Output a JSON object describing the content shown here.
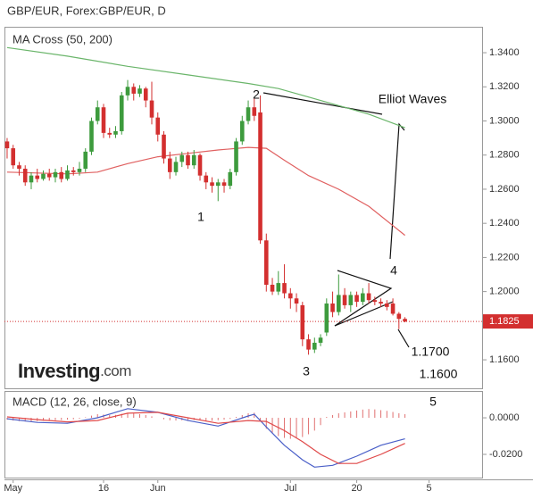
{
  "chart_data": {
    "type": "candlestick",
    "title": "GBP/EUR, Forex:GBP/EUR, D",
    "indicator_label": "MA Cross (50, 200)",
    "macd_label": "MACD (12, 26, close, 9)",
    "logo": "Investing",
    "logo_suffix": ".com",
    "x": [
      0,
      1,
      2,
      3,
      4,
      5,
      6,
      7,
      8,
      9,
      10,
      11,
      12,
      13,
      14,
      15,
      16,
      17,
      18,
      19,
      20,
      21,
      22,
      23,
      24,
      25,
      26,
      27,
      28,
      29,
      30,
      31,
      32,
      33,
      34,
      35,
      36,
      37,
      38,
      39,
      40,
      41,
      42,
      43,
      44,
      45,
      46,
      47,
      48,
      49,
      50,
      51,
      52,
      53,
      54,
      55,
      56,
      57,
      58,
      59,
      60,
      61,
      62,
      63,
      64,
      65,
      66
    ],
    "open": [
      1.288,
      1.284,
      1.274,
      1.272,
      1.264,
      1.268,
      1.266,
      1.269,
      1.267,
      1.27,
      1.266,
      1.271,
      1.27,
      1.272,
      1.282,
      1.3,
      1.308,
      1.293,
      1.292,
      1.294,
      1.315,
      1.32,
      1.316,
      1.319,
      1.312,
      1.302,
      1.292,
      1.278,
      1.27,
      1.276,
      1.28,
      1.274,
      1.28,
      1.268,
      1.264,
      1.262,
      1.264,
      1.262,
      1.27,
      1.288,
      1.3,
      1.308,
      1.305,
      1.23,
      1.204,
      1.2,
      1.205,
      1.199,
      1.196,
      1.192,
      1.172,
      1.166,
      1.17,
      1.176,
      1.193,
      1.188,
      1.198,
      1.192,
      1.198,
      1.194,
      1.199,
      1.195,
      1.194,
      1.193,
      1.193,
      1.187,
      1.184
    ],
    "high": [
      1.29,
      1.286,
      1.276,
      1.274,
      1.27,
      1.272,
      1.271,
      1.272,
      1.272,
      1.273,
      1.274,
      1.273,
      1.276,
      1.284,
      1.302,
      1.312,
      1.31,
      1.296,
      1.297,
      1.317,
      1.324,
      1.322,
      1.321,
      1.32,
      1.323,
      1.305,
      1.294,
      1.282,
      1.279,
      1.282,
      1.282,
      1.283,
      1.281,
      1.27,
      1.267,
      1.266,
      1.266,
      1.272,
      1.29,
      1.303,
      1.312,
      1.313,
      1.315,
      1.234,
      1.208,
      1.212,
      1.216,
      1.202,
      1.199,
      1.194,
      1.175,
      1.173,
      1.175,
      1.196,
      1.2,
      1.21,
      1.202,
      1.2,
      1.2,
      1.202,
      1.205,
      1.197,
      1.196,
      1.195,
      1.196,
      1.188,
      1.185
    ],
    "low": [
      1.278,
      1.272,
      1.268,
      1.262,
      1.26,
      1.264,
      1.265,
      1.265,
      1.264,
      1.264,
      1.265,
      1.268,
      1.268,
      1.27,
      1.28,
      1.298,
      1.29,
      1.29,
      1.29,
      1.292,
      1.312,
      1.312,
      1.314,
      1.308,
      1.298,
      1.288,
      1.275,
      1.266,
      1.268,
      1.273,
      1.272,
      1.272,
      1.265,
      1.26,
      1.258,
      1.253,
      1.258,
      1.26,
      1.268,
      1.286,
      1.298,
      1.3,
      1.228,
      1.2,
      1.198,
      1.198,
      1.196,
      1.19,
      1.188,
      1.168,
      1.163,
      1.164,
      1.168,
      1.174,
      1.185,
      1.186,
      1.19,
      1.188,
      1.191,
      1.192,
      1.193,
      1.192,
      1.191,
      1.189,
      1.186,
      1.178,
      1.182
    ],
    "close": [
      1.284,
      1.274,
      1.272,
      1.264,
      1.268,
      1.266,
      1.269,
      1.267,
      1.27,
      1.266,
      1.271,
      1.27,
      1.272,
      1.282,
      1.3,
      1.308,
      1.293,
      1.292,
      1.294,
      1.315,
      1.32,
      1.316,
      1.319,
      1.312,
      1.302,
      1.292,
      1.278,
      1.27,
      1.276,
      1.28,
      1.274,
      1.28,
      1.268,
      1.264,
      1.262,
      1.264,
      1.262,
      1.27,
      1.288,
      1.3,
      1.308,
      1.303,
      1.23,
      1.204,
      1.2,
      1.205,
      1.199,
      1.196,
      1.193,
      1.172,
      1.166,
      1.17,
      1.173,
      1.193,
      1.188,
      1.198,
      1.192,
      1.198,
      1.194,
      1.199,
      1.195,
      1.194,
      1.193,
      1.191,
      1.187,
      1.184,
      1.1825
    ],
    "up_color": "#3d9b3d",
    "down_color": "#d32f2f",
    "moving_averages": [
      {
        "color": "#6ab56a",
        "x": [
          0,
          10,
          20,
          30,
          40,
          45,
          50,
          55,
          60,
          66
        ],
        "values": [
          1.343,
          1.338,
          1.332,
          1.327,
          1.322,
          1.319,
          1.314,
          1.309,
          1.304,
          1.296
        ]
      },
      {
        "color": "#e06060",
        "x": [
          0,
          10,
          15,
          20,
          25,
          30,
          35,
          40,
          43,
          46,
          50,
          55,
          60,
          66
        ],
        "values": [
          1.27,
          1.269,
          1.27,
          1.275,
          1.279,
          1.281,
          1.283,
          1.2845,
          1.284,
          1.277,
          1.268,
          1.26,
          1.25,
          1.233
        ]
      }
    ],
    "last_price": {
      "value": 1.1825,
      "label": "1.1825",
      "color": "#d32f2f"
    },
    "xlim": [
      -0.44,
      78.8
    ],
    "xticks": [
      {
        "value": 1,
        "label": "May"
      },
      16,
      {
        "value": 25,
        "label": "Jun"
      },
      {
        "value": 47,
        "label": "Jul"
      },
      {
        "value": 58,
        "label": "20"
      },
      {
        "value": 70,
        "label": "5"
      }
    ],
    "ylim": [
      1.1433,
      1.3552
    ],
    "yticks": [
      {
        "value": 1.16,
        "label": "1.1600"
      },
      {
        "value": 1.18,
        "label": "1.1800"
      },
      {
        "value": 1.2,
        "label": "1.2000"
      },
      {
        "value": 1.22,
        "label": "1.2200"
      },
      {
        "value": 1.24,
        "label": "1.2400"
      },
      {
        "value": 1.26,
        "label": "1.2600"
      },
      {
        "value": 1.28,
        "label": "1.2800"
      },
      {
        "value": 1.3,
        "label": "1.3000"
      },
      {
        "value": 1.32,
        "label": "1.3200"
      },
      {
        "value": 1.34,
        "label": "1.3400"
      }
    ],
    "macd": {
      "ylim": [
        -0.0327,
        0.0137
      ],
      "yticks": [
        {
          "value": 0,
          "label": "0.0000"
        },
        {
          "value": -0.02,
          "label": "-0.0200"
        }
      ],
      "histogram": {
        "color": "#e07070",
        "values": [
          -0.001,
          -0.0015,
          -0.0018,
          -0.002,
          -0.002,
          -0.0018,
          -0.0016,
          -0.0015,
          -0.0013,
          -0.0012,
          -0.001,
          -0.0008,
          -0.0005,
          0.0003,
          0.0012,
          0.002,
          0.0018,
          0.0015,
          0.0016,
          0.0022,
          0.0026,
          0.0024,
          0.002,
          0.0015,
          0.0008,
          0.0,
          -0.0008,
          -0.0014,
          -0.0015,
          -0.0014,
          -0.0015,
          -0.0012,
          -0.0014,
          -0.0016,
          -0.0016,
          -0.0013,
          -0.001,
          -0.0006,
          0.0005,
          0.0015,
          0.0025,
          0.0028,
          -0.002,
          -0.006,
          -0.0085,
          -0.01,
          -0.011,
          -0.0115,
          -0.011,
          -0.0105,
          -0.009,
          -0.007,
          -0.004,
          0.0005,
          0.0015,
          0.0025,
          0.003,
          0.0035,
          0.004,
          0.0045,
          0.0048,
          0.0046,
          0.0042,
          0.0038,
          0.0032,
          0.0025,
          0.002
        ]
      },
      "lines": [
        {
          "color": "#4a5fc8",
          "x": [
            0,
            5,
            10,
            15,
            20,
            25,
            30,
            35,
            40,
            41,
            43,
            46,
            49,
            51,
            54,
            58,
            62,
            66
          ],
          "values": [
            -0.0005,
            -0.0025,
            -0.003,
            0.0,
            0.005,
            0.003,
            -0.0015,
            -0.0045,
            0.001,
            0.002,
            -0.005,
            -0.015,
            -0.023,
            -0.027,
            -0.026,
            -0.021,
            -0.015,
            -0.0115
          ]
        },
        {
          "color": "#e04848",
          "x": [
            0,
            5,
            10,
            15,
            20,
            25,
            30,
            35,
            40,
            43,
            46,
            49,
            52,
            55,
            58,
            62,
            66
          ],
          "values": [
            0.0005,
            -0.001,
            -0.0022,
            -0.0015,
            0.0025,
            0.003,
            0.0,
            -0.003,
            -0.0015,
            -0.002,
            -0.007,
            -0.013,
            -0.02,
            -0.025,
            -0.025,
            -0.02,
            -0.014
          ]
        }
      ]
    },
    "annotations": [
      "2",
      "1",
      "3",
      "4",
      "5",
      "Elliot Waves",
      "1.1700",
      "1.1600"
    ]
  }
}
